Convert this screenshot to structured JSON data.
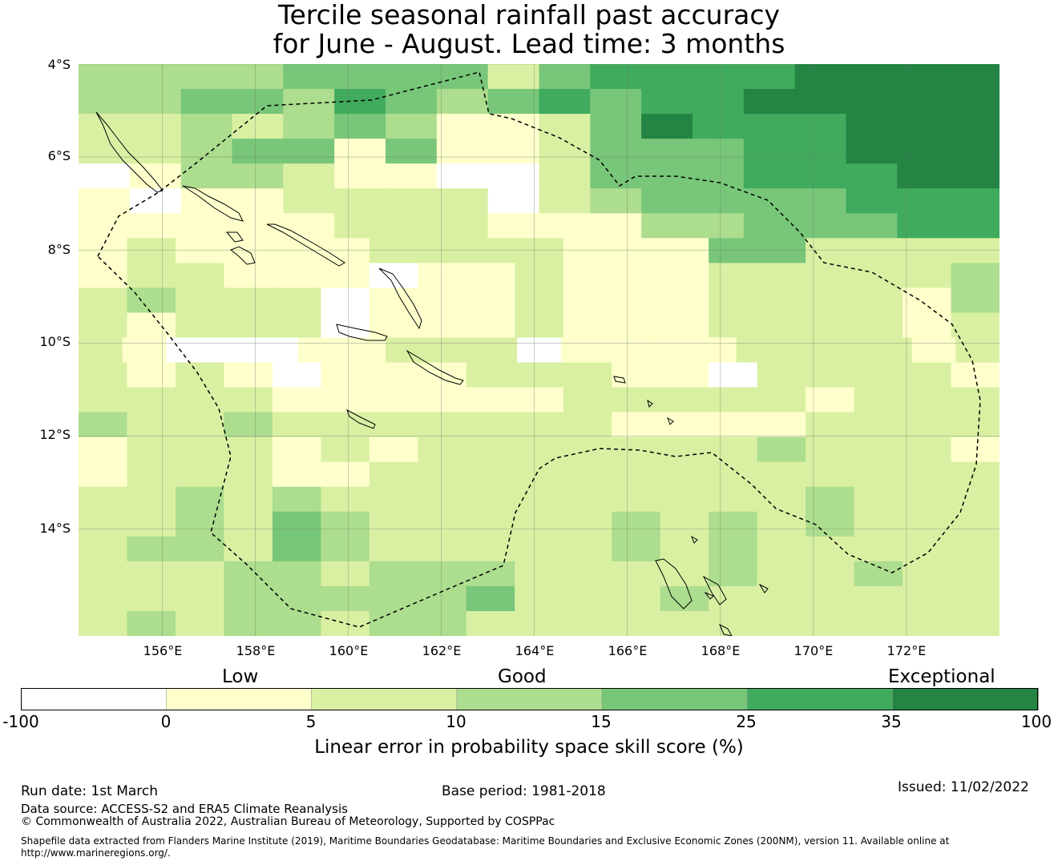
{
  "title": {
    "line1": "Tercile seasonal rainfall past accuracy",
    "line2": "for June - August. Lead time: 3 months"
  },
  "map": {
    "lat_labels": [
      "4°S",
      "6°S",
      "8°S",
      "10°S",
      "12°S",
      "14°S"
    ],
    "lon_labels": [
      "156°E",
      "158°E",
      "160°E",
      "162°E",
      "164°E",
      "166°E",
      "168°E",
      "170°E",
      "172°E"
    ],
    "lat_values": [
      -4,
      -6,
      -8,
      -10,
      -12,
      -14
    ],
    "lon_values": [
      156,
      158,
      160,
      162,
      164,
      166,
      168,
      170,
      172
    ],
    "lon_range": [
      154.2,
      174
    ],
    "lat_range": [
      -4,
      -16.3
    ],
    "grid_rows": [
      "333344442455556666",
      "334435434545566666",
      "223234311246555666",
      "223441411244455666",
      "013321100244455566",
      "101122220234444555",
      "111112221113344455",
      "1211112222111442222",
      "1221110112111222223",
      "2322201112111222213",
      "2122201112111222212",
      "210001122201111222212",
      "2121011122211022221",
      "2222111111222221222",
      "3223222222211112222",
      "1222121222222232221",
      "1222112222222222222",
      "2232322222222223222",
      "2232432222232323222",
      "2332432222232322222",
      "2223323332222322322",
      "2223333342223222222",
      "2323323322222222222"
    ]
  },
  "legend": {
    "category_low": "Low",
    "category_good": "Good",
    "category_exceptional": "Exceptional",
    "ticks": [
      "-100",
      "0",
      "5",
      "10",
      "15",
      "25",
      "35",
      "100"
    ],
    "colors": [
      "#ffffff",
      "#ffffcc",
      "#d9f0a3",
      "#addd8e",
      "#78c679",
      "#41ab5d",
      "#238443"
    ],
    "axis_label": "Linear error in probability space skill score (%)"
  },
  "footer": {
    "run_date": "Run date: 1st March",
    "base_period": "Base period: 1981-2018",
    "issued": "Issued: 11/02/2022",
    "data_source": "Data source: ACCESS-S2 and ERA5 Climate Reanalysis",
    "copyright": "© Commonwealth of Australia 2022, Australian Bureau of Meteorology, Supported by COSPPac",
    "shapefile_line1": "Shapefile data extracted from Flanders Marine Institute (2019), Maritime Boundaries Geodatabase: Maritime Boundaries and Exclusive Economic Zones (200NM), version 11. Available online at",
    "shapefile_line2": "http://www.marineregions.org/."
  }
}
